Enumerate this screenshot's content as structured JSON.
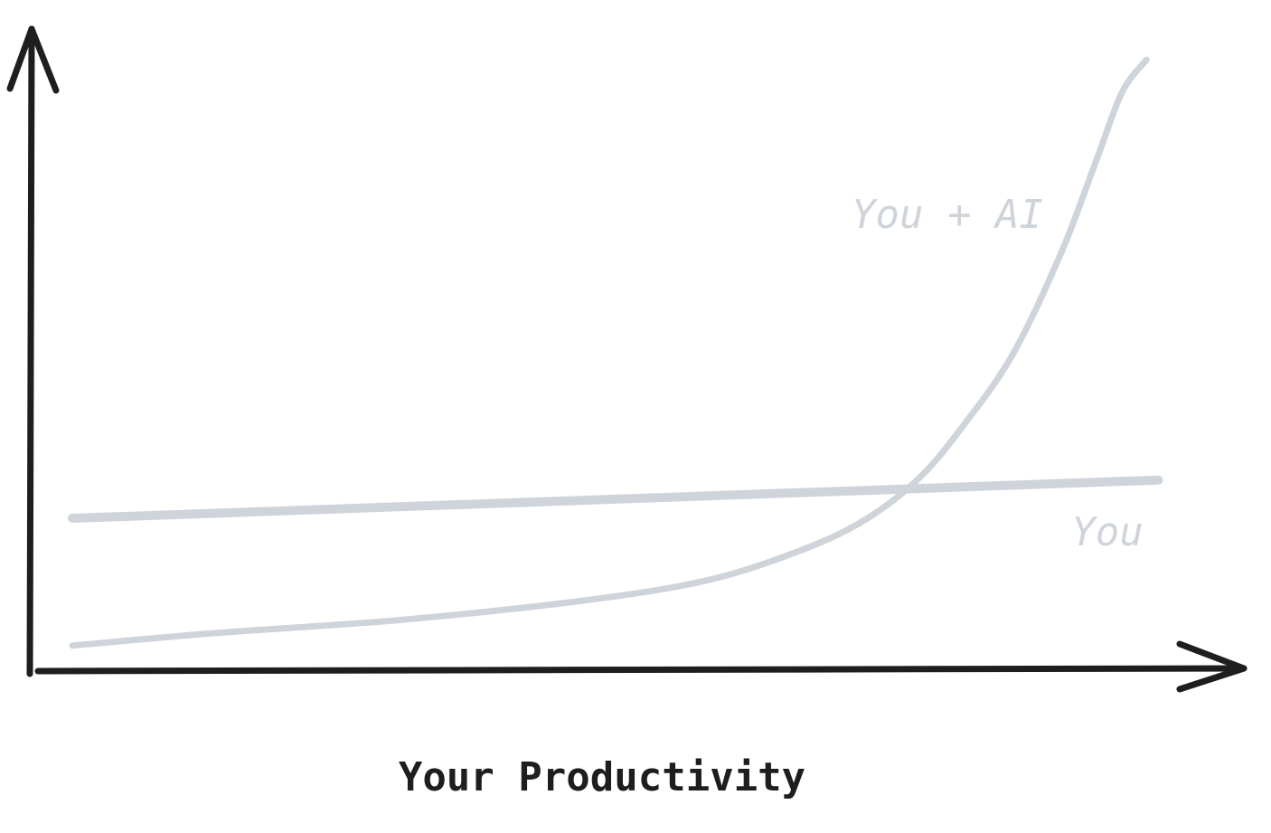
{
  "chart_data": {
    "type": "line",
    "title": "",
    "xlabel": "Your Productivity",
    "ylabel": "",
    "xlim": [
      0,
      10
    ],
    "ylim": [
      0,
      10
    ],
    "grid": false,
    "legend": "none",
    "axis_color": "#1e1e1e",
    "series": [
      {
        "name": "You",
        "color": "#cfd4da",
        "x": [
          0.3,
          9.3
        ],
        "y": [
          2.4,
          3.0
        ]
      },
      {
        "name": "You + AI",
        "color": "#cfd4da",
        "x": [
          0.3,
          1.5,
          3.0,
          4.5,
          5.5,
          6.2,
          6.8,
          7.3,
          7.7,
          8.1,
          8.5,
          8.8,
          9.0,
          9.2
        ],
        "y": [
          0.4,
          0.6,
          0.8,
          1.1,
          1.4,
          1.8,
          2.3,
          3.0,
          3.9,
          5.0,
          6.6,
          8.1,
          9.1,
          9.6
        ]
      }
    ]
  }
}
